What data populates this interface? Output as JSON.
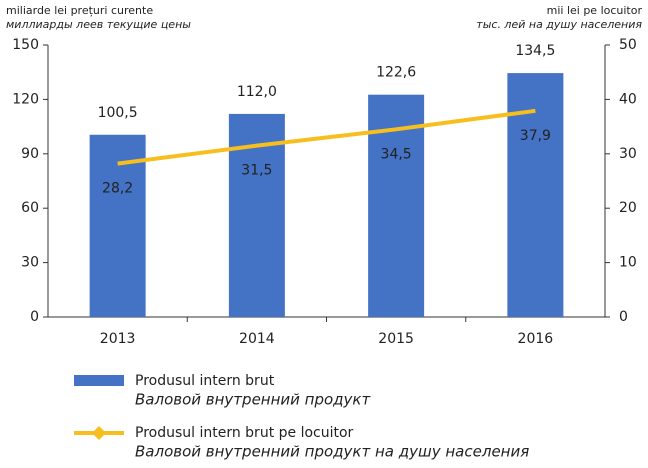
{
  "chart_data": {
    "type": "bar_line",
    "ylabel": [
      "miliarde lei prețuri curente",
      "миллиарды леев текущие цены"
    ],
    "y2label": [
      "mii lei pe locuitor",
      "тыс. лей на душу населения"
    ],
    "categories": [
      "2013",
      "2014",
      "2015",
      "2016"
    ],
    "series": [
      {
        "name": "Produsul intern brut",
        "name_ru": "Валовой внутренний продукт",
        "type": "bar",
        "color": "#4472c4",
        "values": [
          100.5,
          112.0,
          122.6,
          134.5
        ],
        "value_labels": [
          "100,5",
          "112,0",
          "122,6",
          "134,5"
        ]
      },
      {
        "name": "Produsul intern brut pe locuitor",
        "name_ru": "Валовой внутренний продукт на душу населения",
        "type": "line",
        "axis": "y2",
        "color": "#f7bf1e",
        "values": [
          28.2,
          31.5,
          34.5,
          37.9
        ],
        "value_labels": [
          "28,2",
          "31,5",
          "34,5",
          "37,9"
        ]
      }
    ],
    "ylim": [
      0,
      150
    ],
    "yticks": [
      0,
      30,
      60,
      90,
      120,
      150
    ],
    "y2lim": [
      0,
      50
    ],
    "y2ticks": [
      0,
      10,
      20,
      30,
      40,
      50
    ]
  }
}
